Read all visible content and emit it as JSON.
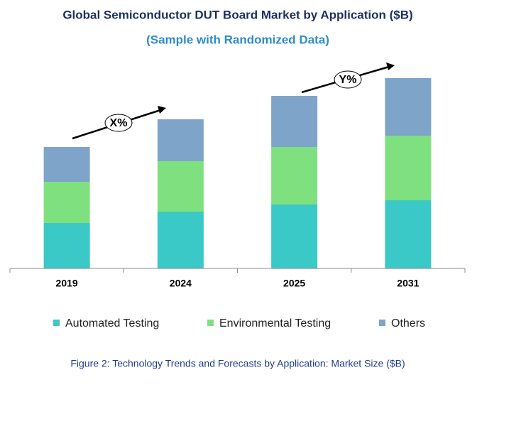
{
  "chart_data": {
    "type": "stacked_bar",
    "title": "Global Semiconductor DUT Board Market by Application ($B)",
    "subtitle": "(Sample with Randomized Data)",
    "categories": [
      "2019",
      "2024",
      "2025",
      "2031"
    ],
    "series": [
      {
        "name": "Automated Testing",
        "color": "#3ac9c6",
        "values": [
          64,
          80,
          90,
          96
        ]
      },
      {
        "name": "Environmental Testing",
        "color": "#7fe07f",
        "values": [
          58,
          71,
          81,
          91
        ]
      },
      {
        "name": "Others",
        "color": "#7ea4c9",
        "values": [
          49,
          59,
          72,
          81
        ]
      }
    ],
    "ylim": [
      0,
      270
    ],
    "annotations": [
      "X%",
      "Y%"
    ],
    "caption": "Figure 2: Technology  Trends  and Forecasts by Application: Market Size ($B)"
  }
}
